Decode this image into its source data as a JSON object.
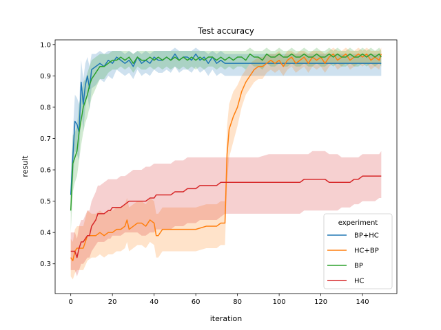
{
  "chart_data": {
    "type": "line",
    "title": "Test accuracy",
    "xlabel": "iteration",
    "ylabel": "result",
    "xlim": [
      -7.5,
      156.5
    ],
    "ylim": [
      0.205,
      1.015
    ],
    "xticks": [
      0,
      20,
      40,
      60,
      80,
      100,
      120,
      140
    ],
    "yticks": [
      0.3,
      0.4,
      0.5,
      0.6,
      0.7,
      0.8,
      0.9,
      1.0
    ],
    "xtick_labels": [
      "0",
      "20",
      "40",
      "60",
      "80",
      "100",
      "120",
      "140"
    ],
    "ytick_labels": [
      "0.3",
      "0.4",
      "0.5",
      "0.6",
      "0.7",
      "0.8",
      "0.9",
      "1.0"
    ],
    "grid": false,
    "legend": {
      "title": "experiment",
      "placement": "lower-right"
    },
    "series": [
      {
        "name": "BP+HC",
        "color": "#1f77b4",
        "x": [
          0,
          1,
          2,
          3,
          4,
          5,
          6,
          7,
          8,
          9,
          10,
          12,
          14,
          16,
          18,
          20,
          22,
          24,
          26,
          28,
          30,
          32,
          34,
          36,
          38,
          40,
          42,
          44,
          46,
          48,
          50,
          52,
          54,
          56,
          58,
          60,
          62,
          64,
          66,
          68,
          70,
          72,
          74,
          76,
          80,
          90,
          100,
          110,
          120,
          130,
          140,
          149
        ],
        "y": [
          0.52,
          0.64,
          0.755,
          0.745,
          0.72,
          0.88,
          0.81,
          0.87,
          0.9,
          0.86,
          0.92,
          0.93,
          0.94,
          0.93,
          0.95,
          0.94,
          0.96,
          0.95,
          0.94,
          0.95,
          0.93,
          0.96,
          0.94,
          0.95,
          0.94,
          0.96,
          0.95,
          0.95,
          0.96,
          0.95,
          0.97,
          0.95,
          0.96,
          0.96,
          0.95,
          0.97,
          0.95,
          0.96,
          0.94,
          0.96,
          0.94,
          0.95,
          0.94,
          0.94,
          0.94,
          0.94,
          0.94,
          0.94,
          0.94,
          0.94,
          0.94,
          0.94
        ],
        "lower": [
          0.46,
          0.56,
          0.66,
          0.65,
          0.63,
          0.8,
          0.72,
          0.8,
          0.84,
          0.79,
          0.86,
          0.87,
          0.89,
          0.88,
          0.9,
          0.89,
          0.92,
          0.91,
          0.9,
          0.91,
          0.89,
          0.92,
          0.9,
          0.91,
          0.9,
          0.92,
          0.91,
          0.91,
          0.92,
          0.91,
          0.93,
          0.91,
          0.92,
          0.92,
          0.91,
          0.93,
          0.91,
          0.92,
          0.9,
          0.92,
          0.9,
          0.91,
          0.9,
          0.9,
          0.9,
          0.9,
          0.9,
          0.9,
          0.9,
          0.9,
          0.9,
          0.9
        ],
        "upper": [
          0.58,
          0.72,
          0.84,
          0.83,
          0.81,
          0.95,
          0.89,
          0.94,
          0.96,
          0.93,
          0.97,
          0.97,
          0.98,
          0.97,
          0.98,
          0.98,
          0.98,
          0.98,
          0.97,
          0.98,
          0.97,
          0.98,
          0.97,
          0.98,
          0.97,
          0.98,
          0.98,
          0.98,
          0.98,
          0.98,
          0.99,
          0.98,
          0.98,
          0.98,
          0.98,
          0.99,
          0.98,
          0.98,
          0.97,
          0.98,
          0.97,
          0.98,
          0.97,
          0.97,
          0.97,
          0.97,
          0.97,
          0.97,
          0.97,
          0.97,
          0.97,
          0.97
        ]
      },
      {
        "name": "HC+BP",
        "color": "#ff7f0e",
        "x": [
          0,
          1,
          2,
          3,
          4,
          6,
          8,
          10,
          12,
          14,
          16,
          18,
          20,
          22,
          24,
          26,
          27,
          28,
          30,
          32,
          34,
          36,
          38,
          40,
          41,
          42,
          44,
          46,
          48,
          50,
          55,
          60,
          65,
          70,
          72,
          74,
          75,
          76,
          78,
          80,
          82,
          84,
          86,
          88,
          90,
          92,
          94,
          96,
          98,
          100,
          102,
          104,
          106,
          108,
          110,
          112,
          114,
          116,
          118,
          120,
          122,
          124,
          126,
          128,
          130,
          132,
          134,
          136,
          138,
          140,
          142,
          144,
          146,
          148,
          149
        ],
        "y": [
          0.32,
          0.31,
          0.34,
          0.35,
          0.35,
          0.35,
          0.39,
          0.39,
          0.39,
          0.4,
          0.39,
          0.4,
          0.4,
          0.41,
          0.41,
          0.42,
          0.44,
          0.41,
          0.42,
          0.43,
          0.43,
          0.42,
          0.44,
          0.43,
          0.39,
          0.39,
          0.41,
          0.41,
          0.41,
          0.41,
          0.41,
          0.41,
          0.42,
          0.42,
          0.43,
          0.43,
          0.65,
          0.73,
          0.77,
          0.8,
          0.85,
          0.88,
          0.9,
          0.92,
          0.93,
          0.93,
          0.94,
          0.95,
          0.94,
          0.95,
          0.93,
          0.95,
          0.96,
          0.94,
          0.95,
          0.96,
          0.94,
          0.96,
          0.95,
          0.96,
          0.94,
          0.96,
          0.97,
          0.95,
          0.96,
          0.97,
          0.95,
          0.96,
          0.97,
          0.96,
          0.97,
          0.95,
          0.96,
          0.95,
          0.97
        ],
        "lower": [
          0.26,
          0.25,
          0.27,
          0.28,
          0.28,
          0.28,
          0.31,
          0.32,
          0.32,
          0.33,
          0.32,
          0.33,
          0.33,
          0.34,
          0.34,
          0.35,
          0.37,
          0.34,
          0.35,
          0.36,
          0.36,
          0.35,
          0.37,
          0.36,
          0.32,
          0.32,
          0.34,
          0.34,
          0.34,
          0.34,
          0.34,
          0.34,
          0.35,
          0.35,
          0.36,
          0.36,
          0.56,
          0.64,
          0.69,
          0.74,
          0.8,
          0.84,
          0.86,
          0.88,
          0.89,
          0.89,
          0.91,
          0.92,
          0.91,
          0.92,
          0.9,
          0.92,
          0.93,
          0.91,
          0.92,
          0.93,
          0.91,
          0.93,
          0.92,
          0.93,
          0.91,
          0.93,
          0.94,
          0.92,
          0.93,
          0.94,
          0.92,
          0.93,
          0.94,
          0.93,
          0.94,
          0.92,
          0.93,
          0.92,
          0.94
        ],
        "upper": [
          0.38,
          0.37,
          0.41,
          0.42,
          0.42,
          0.42,
          0.47,
          0.46,
          0.46,
          0.47,
          0.46,
          0.47,
          0.47,
          0.48,
          0.48,
          0.49,
          0.51,
          0.48,
          0.49,
          0.5,
          0.5,
          0.49,
          0.51,
          0.5,
          0.46,
          0.46,
          0.48,
          0.48,
          0.48,
          0.48,
          0.48,
          0.48,
          0.49,
          0.49,
          0.5,
          0.5,
          0.74,
          0.81,
          0.85,
          0.87,
          0.9,
          0.92,
          0.94,
          0.95,
          0.96,
          0.96,
          0.97,
          0.97,
          0.97,
          0.98,
          0.96,
          0.98,
          0.98,
          0.97,
          0.98,
          0.98,
          0.97,
          0.98,
          0.98,
          0.98,
          0.97,
          0.98,
          0.99,
          0.98,
          0.98,
          0.99,
          0.98,
          0.98,
          0.99,
          0.98,
          0.99,
          0.98,
          0.98,
          0.98,
          0.99
        ]
      },
      {
        "name": "BP",
        "color": "#2ca02c",
        "x": [
          0,
          1,
          2,
          3,
          4,
          5,
          6,
          7,
          8,
          9,
          10,
          12,
          14,
          16,
          18,
          20,
          22,
          24,
          26,
          28,
          30,
          32,
          34,
          36,
          38,
          40,
          42,
          44,
          46,
          48,
          50,
          52,
          54,
          56,
          58,
          60,
          62,
          64,
          66,
          68,
          70,
          72,
          74,
          76,
          78,
          80,
          82,
          84,
          86,
          88,
          90,
          92,
          94,
          96,
          98,
          100,
          102,
          104,
          106,
          108,
          110,
          112,
          114,
          116,
          118,
          120,
          122,
          124,
          126,
          128,
          130,
          132,
          134,
          136,
          138,
          140,
          142,
          144,
          146,
          148,
          149
        ],
        "y": [
          0.47,
          0.62,
          0.64,
          0.66,
          0.72,
          0.76,
          0.8,
          0.82,
          0.84,
          0.87,
          0.89,
          0.91,
          0.93,
          0.93,
          0.94,
          0.95,
          0.95,
          0.96,
          0.95,
          0.96,
          0.94,
          0.96,
          0.95,
          0.95,
          0.96,
          0.95,
          0.96,
          0.95,
          0.96,
          0.95,
          0.96,
          0.95,
          0.96,
          0.95,
          0.96,
          0.95,
          0.96,
          0.95,
          0.96,
          0.96,
          0.95,
          0.96,
          0.95,
          0.96,
          0.95,
          0.96,
          0.96,
          0.95,
          0.97,
          0.96,
          0.96,
          0.95,
          0.97,
          0.96,
          0.96,
          0.97,
          0.96,
          0.96,
          0.97,
          0.96,
          0.96,
          0.97,
          0.96,
          0.96,
          0.97,
          0.96,
          0.96,
          0.97,
          0.96,
          0.97,
          0.96,
          0.96,
          0.97,
          0.96,
          0.96,
          0.97,
          0.96,
          0.97,
          0.96,
          0.97,
          0.96
        ],
        "lower": [
          0.4,
          0.53,
          0.56,
          0.58,
          0.63,
          0.68,
          0.72,
          0.75,
          0.77,
          0.8,
          0.83,
          0.86,
          0.89,
          0.89,
          0.91,
          0.92,
          0.92,
          0.93,
          0.92,
          0.93,
          0.91,
          0.93,
          0.92,
          0.92,
          0.93,
          0.92,
          0.93,
          0.92,
          0.93,
          0.92,
          0.93,
          0.92,
          0.93,
          0.92,
          0.93,
          0.92,
          0.93,
          0.92,
          0.93,
          0.93,
          0.92,
          0.93,
          0.92,
          0.93,
          0.92,
          0.93,
          0.93,
          0.92,
          0.94,
          0.93,
          0.93,
          0.92,
          0.94,
          0.93,
          0.93,
          0.94,
          0.93,
          0.93,
          0.94,
          0.93,
          0.93,
          0.94,
          0.93,
          0.93,
          0.94,
          0.93,
          0.93,
          0.94,
          0.93,
          0.94,
          0.93,
          0.93,
          0.94,
          0.93,
          0.93,
          0.94,
          0.93,
          0.94,
          0.93,
          0.94,
          0.93
        ],
        "upper": [
          0.54,
          0.71,
          0.72,
          0.74,
          0.81,
          0.84,
          0.88,
          0.89,
          0.91,
          0.93,
          0.95,
          0.96,
          0.97,
          0.97,
          0.97,
          0.98,
          0.98,
          0.98,
          0.98,
          0.98,
          0.97,
          0.98,
          0.98,
          0.98,
          0.98,
          0.98,
          0.98,
          0.98,
          0.98,
          0.98,
          0.98,
          0.98,
          0.98,
          0.98,
          0.98,
          0.98,
          0.98,
          0.98,
          0.98,
          0.98,
          0.98,
          0.98,
          0.98,
          0.98,
          0.98,
          0.98,
          0.98,
          0.98,
          0.99,
          0.98,
          0.98,
          0.98,
          0.99,
          0.98,
          0.98,
          0.99,
          0.98,
          0.98,
          0.99,
          0.98,
          0.98,
          0.99,
          0.98,
          0.98,
          0.99,
          0.98,
          0.98,
          0.99,
          0.98,
          0.99,
          0.98,
          0.98,
          0.99,
          0.98,
          0.98,
          0.99,
          0.98,
          0.99,
          0.98,
          0.99,
          0.98
        ]
      },
      {
        "name": "HC",
        "color": "#d62728",
        "x": [
          0,
          2,
          3,
          4,
          5,
          6,
          8,
          9,
          10,
          12,
          13,
          14,
          16,
          18,
          19,
          20,
          22,
          24,
          26,
          28,
          30,
          32,
          34,
          36,
          38,
          40,
          41,
          42,
          44,
          46,
          48,
          50,
          52,
          54,
          56,
          58,
          60,
          62,
          64,
          66,
          68,
          70,
          72,
          74,
          76,
          78,
          80,
          82,
          84,
          86,
          88,
          90,
          95,
          100,
          105,
          110,
          112,
          114,
          116,
          118,
          120,
          122,
          124,
          126,
          128,
          130,
          132,
          134,
          136,
          138,
          140,
          142,
          144,
          146,
          148,
          149
        ],
        "y": [
          0.34,
          0.34,
          0.32,
          0.35,
          0.37,
          0.37,
          0.39,
          0.39,
          0.42,
          0.44,
          0.46,
          0.46,
          0.46,
          0.47,
          0.47,
          0.48,
          0.48,
          0.48,
          0.49,
          0.5,
          0.5,
          0.5,
          0.5,
          0.5,
          0.51,
          0.51,
          0.52,
          0.52,
          0.52,
          0.52,
          0.52,
          0.53,
          0.53,
          0.53,
          0.54,
          0.54,
          0.54,
          0.55,
          0.55,
          0.55,
          0.55,
          0.55,
          0.56,
          0.56,
          0.56,
          0.56,
          0.56,
          0.56,
          0.56,
          0.56,
          0.56,
          0.56,
          0.56,
          0.56,
          0.56,
          0.56,
          0.57,
          0.57,
          0.57,
          0.57,
          0.57,
          0.57,
          0.56,
          0.56,
          0.56,
          0.56,
          0.56,
          0.56,
          0.57,
          0.57,
          0.58,
          0.58,
          0.58,
          0.58,
          0.58,
          0.58
        ],
        "lower": [
          0.28,
          0.28,
          0.26,
          0.28,
          0.3,
          0.3,
          0.32,
          0.32,
          0.34,
          0.36,
          0.37,
          0.37,
          0.37,
          0.38,
          0.38,
          0.39,
          0.39,
          0.39,
          0.4,
          0.4,
          0.4,
          0.4,
          0.39,
          0.39,
          0.4,
          0.4,
          0.41,
          0.41,
          0.41,
          0.41,
          0.41,
          0.42,
          0.42,
          0.42,
          0.43,
          0.43,
          0.43,
          0.44,
          0.44,
          0.44,
          0.44,
          0.44,
          0.45,
          0.46,
          0.46,
          0.46,
          0.46,
          0.46,
          0.46,
          0.46,
          0.46,
          0.46,
          0.46,
          0.46,
          0.46,
          0.46,
          0.47,
          0.47,
          0.47,
          0.47,
          0.47,
          0.47,
          0.47,
          0.47,
          0.47,
          0.48,
          0.48,
          0.48,
          0.49,
          0.49,
          0.5,
          0.5,
          0.5,
          0.5,
          0.51,
          0.51
        ],
        "upper": [
          0.4,
          0.4,
          0.38,
          0.42,
          0.44,
          0.44,
          0.47,
          0.47,
          0.5,
          0.53,
          0.55,
          0.55,
          0.56,
          0.57,
          0.57,
          0.57,
          0.57,
          0.58,
          0.58,
          0.59,
          0.6,
          0.6,
          0.6,
          0.61,
          0.61,
          0.62,
          0.62,
          0.62,
          0.62,
          0.62,
          0.62,
          0.63,
          0.63,
          0.63,
          0.64,
          0.64,
          0.64,
          0.64,
          0.64,
          0.64,
          0.64,
          0.64,
          0.64,
          0.64,
          0.64,
          0.64,
          0.64,
          0.64,
          0.64,
          0.64,
          0.64,
          0.64,
          0.65,
          0.65,
          0.65,
          0.65,
          0.65,
          0.65,
          0.66,
          0.66,
          0.66,
          0.66,
          0.65,
          0.65,
          0.65,
          0.64,
          0.64,
          0.64,
          0.64,
          0.64,
          0.65,
          0.65,
          0.65,
          0.65,
          0.65,
          0.66
        ]
      }
    ]
  }
}
